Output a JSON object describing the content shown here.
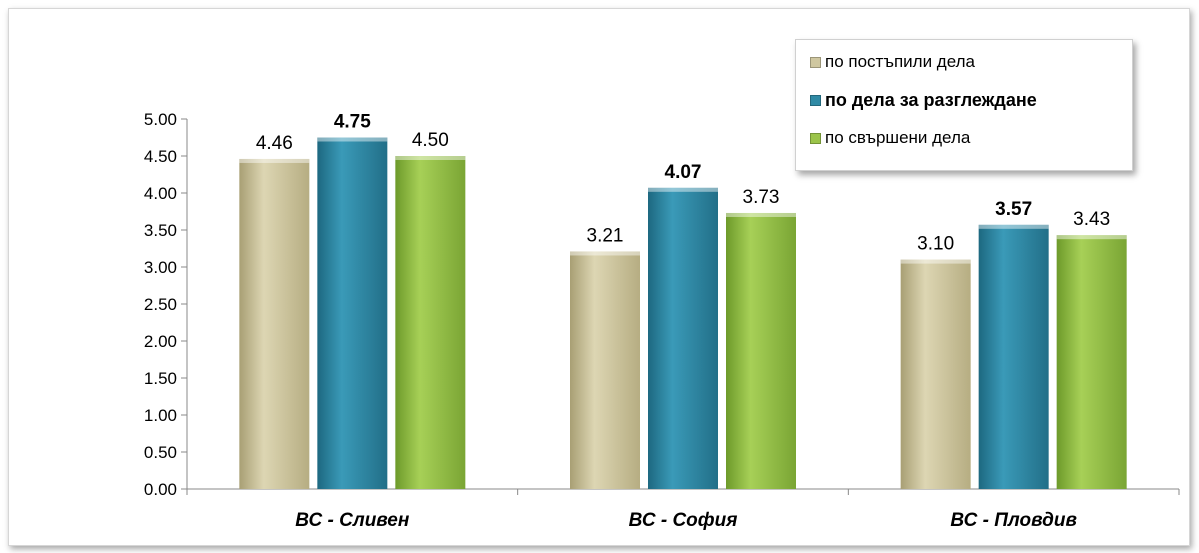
{
  "chart_data": {
    "type": "bar",
    "categories": [
      "ВС - Сливен",
      "ВС - София",
      "ВС - Пловдив"
    ],
    "series": [
      {
        "name": "по постъпили дела",
        "values": [
          4.46,
          3.21,
          3.1
        ],
        "labels": [
          "4.46",
          "3.21",
          "3.10"
        ],
        "color": "#cfc7a0",
        "bold": false
      },
      {
        "name": "по дела за разглеждане",
        "values": [
          4.75,
          4.07,
          3.57
        ],
        "labels": [
          "4.75",
          "4.07",
          "3.57"
        ],
        "color": "#2f8aa5",
        "bold": true
      },
      {
        "name": "по свършени дела",
        "values": [
          4.5,
          3.73,
          3.43
        ],
        "labels": [
          "4.50",
          "3.73",
          "3.43"
        ],
        "color": "#9bc44a",
        "bold": false
      }
    ],
    "y_ticks": [
      "0.00",
      "0.50",
      "1.00",
      "1.50",
      "2.00",
      "2.50",
      "3.00",
      "3.50",
      "4.00",
      "4.50",
      "5.00"
    ],
    "ylim": [
      0,
      5
    ],
    "legend_position": "top-right",
    "grid": false
  }
}
